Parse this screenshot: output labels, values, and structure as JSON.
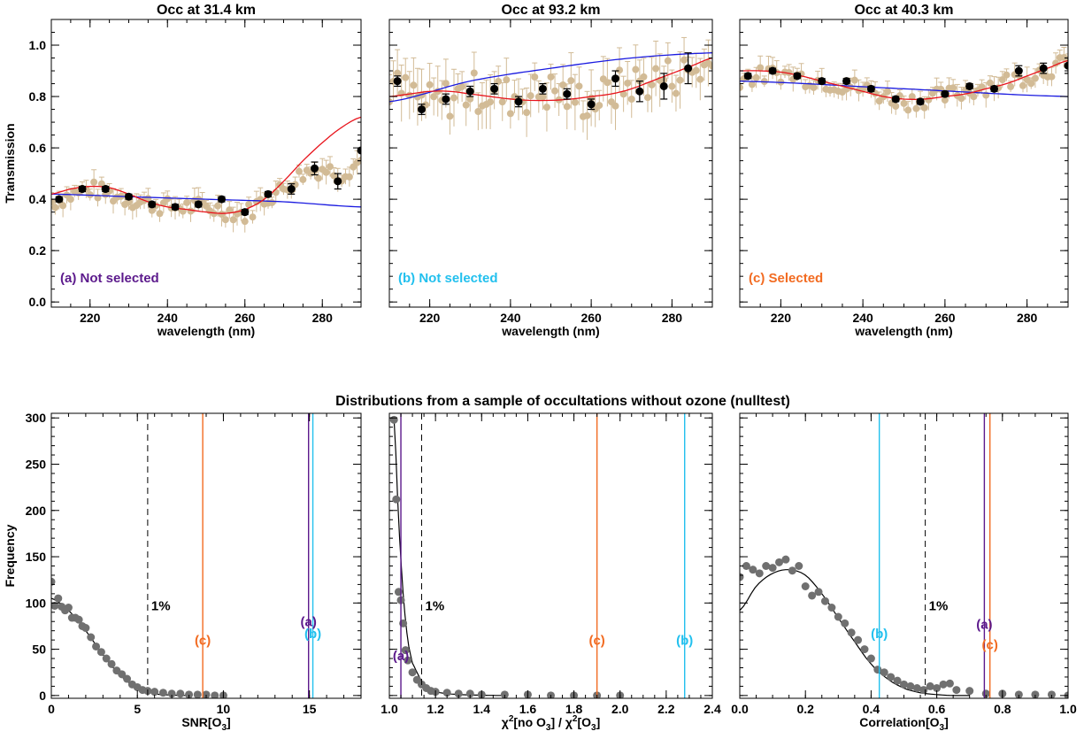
{
  "colors": {
    "a": "#5c1a8c",
    "b": "#22c0ee",
    "c": "#f26b21",
    "data_points": "#d2bb96",
    "binned": "#000000",
    "fit_red": "#e8141c",
    "fit_blue": "#1a1ae0",
    "hist": "#707070",
    "dashed": "#000000"
  },
  "suptitle": "Distributions from a sample of occultations without ozone (nulltest)",
  "chart_data": [
    {
      "type": "scatter",
      "title": "Occ  at  31.4 km",
      "xlabel": "wavelength (nm)",
      "ylabel": "Transmission",
      "xlim": [
        210,
        290
      ],
      "ylim": [
        -0.02,
        1.1
      ],
      "xticks": [
        "220",
        "240",
        "260",
        "280"
      ],
      "yticks": [
        "0.0",
        "0.2",
        "0.4",
        "0.6",
        "0.8",
        "1.0"
      ],
      "label": "(a) Not selected",
      "label_color_key": "a",
      "raw_baseline": [
        [
          210,
          0.39
        ],
        [
          220,
          0.44
        ],
        [
          230,
          0.4
        ],
        [
          240,
          0.37
        ],
        [
          250,
          0.37
        ],
        [
          260,
          0.34
        ],
        [
          265,
          0.4
        ],
        [
          270,
          0.44
        ],
        [
          275,
          0.5
        ],
        [
          280,
          0.52
        ],
        [
          285,
          0.5
        ],
        [
          290,
          0.55
        ]
      ],
      "raw_noise": 0.035,
      "binned": {
        "x": [
          212,
          218,
          224,
          230,
          236,
          242,
          248,
          254,
          260,
          266,
          272,
          278,
          284,
          290
        ],
        "y": [
          0.4,
          0.44,
          0.44,
          0.41,
          0.38,
          0.37,
          0.38,
          0.4,
          0.35,
          0.42,
          0.44,
          0.52,
          0.47,
          0.59
        ],
        "err": [
          0.01,
          0.01,
          0.01,
          0.01,
          0.01,
          0.01,
          0.01,
          0.01,
          0.01,
          0.01,
          0.02,
          0.025,
          0.03,
          0.04
        ]
      },
      "fit_red": {
        "x": [
          210,
          215,
          220,
          225,
          230,
          235,
          240,
          245,
          250,
          255,
          260,
          265,
          270,
          275,
          280,
          285,
          290
        ],
        "y": [
          0.42,
          0.44,
          0.45,
          0.445,
          0.42,
          0.39,
          0.37,
          0.36,
          0.35,
          0.345,
          0.36,
          0.4,
          0.47,
          0.55,
          0.62,
          0.68,
          0.72
        ]
      },
      "fit_blue": {
        "x": [
          210,
          230,
          250,
          270,
          290
        ],
        "y": [
          0.42,
          0.41,
          0.4,
          0.39,
          0.37
        ]
      }
    },
    {
      "type": "scatter",
      "title": "Occ  at  93.2 km",
      "xlabel": "wavelength (nm)",
      "ylabel": "",
      "xlim": [
        210,
        290
      ],
      "ylim": [
        -0.02,
        1.1
      ],
      "xticks": [
        "220",
        "240",
        "260",
        "280"
      ],
      "yticks": [],
      "label": "(b) Not selected",
      "label_color_key": "b",
      "raw_baseline": [
        [
          210,
          0.84
        ],
        [
          220,
          0.77
        ],
        [
          230,
          0.82
        ],
        [
          240,
          0.8
        ],
        [
          250,
          0.82
        ],
        [
          260,
          0.78
        ],
        [
          270,
          0.85
        ],
        [
          280,
          0.88
        ],
        [
          290,
          0.92
        ]
      ],
      "raw_noise": 0.08,
      "binned": {
        "x": [
          212,
          218,
          224,
          230,
          236,
          242,
          248,
          254,
          260,
          266,
          272,
          278,
          284
        ],
        "y": [
          0.86,
          0.75,
          0.79,
          0.82,
          0.83,
          0.78,
          0.83,
          0.81,
          0.77,
          0.87,
          0.82,
          0.84,
          0.91
        ],
        "err": [
          0.02,
          0.02,
          0.02,
          0.02,
          0.02,
          0.02,
          0.02,
          0.02,
          0.02,
          0.03,
          0.04,
          0.05,
          0.06
        ]
      },
      "fit_red": {
        "x": [
          210,
          215,
          220,
          225,
          230,
          235,
          240,
          245,
          250,
          255,
          260,
          265,
          270,
          275,
          280,
          285,
          290
        ],
        "y": [
          0.8,
          0.81,
          0.82,
          0.82,
          0.81,
          0.8,
          0.79,
          0.785,
          0.785,
          0.79,
          0.8,
          0.81,
          0.83,
          0.86,
          0.89,
          0.92,
          0.95
        ]
      },
      "fit_blue": {
        "x": [
          210,
          230,
          250,
          270,
          290
        ],
        "y": [
          0.78,
          0.86,
          0.91,
          0.95,
          0.97
        ]
      }
    },
    {
      "type": "scatter",
      "title": "Occ  at  40.3 km",
      "xlabel": "wavelength (nm)",
      "ylabel": "",
      "xlim": [
        210,
        290
      ],
      "ylim": [
        -0.02,
        1.1
      ],
      "xticks": [
        "220",
        "240",
        "260",
        "280"
      ],
      "yticks": [],
      "label": "(c) Selected",
      "label_color_key": "c",
      "raw_baseline": [
        [
          210,
          0.87
        ],
        [
          220,
          0.89
        ],
        [
          230,
          0.86
        ],
        [
          240,
          0.83
        ],
        [
          250,
          0.78
        ],
        [
          260,
          0.8
        ],
        [
          270,
          0.84
        ],
        [
          280,
          0.88
        ],
        [
          290,
          0.93
        ]
      ],
      "raw_noise": 0.035,
      "binned": {
        "x": [
          212,
          218,
          224,
          230,
          236,
          242,
          248,
          254,
          260,
          266,
          272,
          278,
          284,
          290
        ],
        "y": [
          0.88,
          0.9,
          0.88,
          0.86,
          0.86,
          0.83,
          0.79,
          0.78,
          0.81,
          0.84,
          0.83,
          0.9,
          0.91,
          0.92
        ],
        "err": [
          0.01,
          0.01,
          0.01,
          0.01,
          0.01,
          0.01,
          0.01,
          0.01,
          0.01,
          0.01,
          0.01,
          0.02,
          0.02,
          0.03
        ]
      },
      "fit_red": {
        "x": [
          210,
          215,
          220,
          225,
          230,
          235,
          240,
          245,
          250,
          255,
          260,
          265,
          270,
          275,
          280,
          285,
          290
        ],
        "y": [
          0.9,
          0.9,
          0.895,
          0.88,
          0.86,
          0.84,
          0.82,
          0.8,
          0.79,
          0.79,
          0.8,
          0.81,
          0.83,
          0.85,
          0.88,
          0.91,
          0.94
        ]
      },
      "fit_blue": {
        "x": [
          210,
          250,
          290
        ],
        "y": [
          0.86,
          0.83,
          0.8
        ]
      }
    },
    {
      "type": "scatter",
      "title": "",
      "xlabel": "SNR[O3]",
      "ylabel": "Frequency",
      "xlim": [
        0,
        18
      ],
      "ylim": [
        -3,
        305
      ],
      "xticks": [
        "0",
        "5",
        "10",
        "15"
      ],
      "xtick_vals": [
        0,
        5,
        10,
        15
      ],
      "yticks": [
        "0",
        "50",
        "100",
        "150",
        "200",
        "250",
        "300"
      ],
      "hist": {
        "x": [
          0,
          0.2,
          0.4,
          0.6,
          0.8,
          1.0,
          1.2,
          1.4,
          1.6,
          1.8,
          2.0,
          2.3,
          2.6,
          2.9,
          3.2,
          3.5,
          3.8,
          4.1,
          4.4,
          4.7,
          5.0,
          5.3,
          5.6,
          6,
          6.5,
          7,
          7.5,
          8,
          8.5,
          9,
          9.5,
          10
        ],
        "y": [
          123,
          97,
          105,
          96,
          92,
          95,
          84,
          84,
          82,
          75,
          73,
          63,
          53,
          47,
          40,
          34,
          27,
          23,
          18,
          12,
          9,
          6,
          5,
          4,
          3,
          2,
          2,
          1,
          1,
          1,
          0,
          0
        ]
      },
      "fit_curve": {
        "x": [
          0,
          1,
          2,
          3,
          4,
          5,
          6,
          7,
          8
        ],
        "y": [
          105,
          92,
          70,
          44,
          22,
          8,
          2,
          0.5,
          0
        ]
      },
      "pct_line": {
        "x": 5.6,
        "label": "1%"
      },
      "markers": [
        {
          "key": "c",
          "x": 8.8,
          "label": "(c)",
          "label_y": 55
        },
        {
          "key": "a",
          "x": 14.95,
          "label": "(a)",
          "label_y": 75
        },
        {
          "key": "b",
          "x": 15.2,
          "label": "(b)",
          "label_y": 62
        }
      ]
    },
    {
      "type": "scatter",
      "title": "",
      "xlabel": "χ2[no O3] / χ2[O3]",
      "ylabel": "",
      "xlim": [
        1.0,
        2.4
      ],
      "ylim": [
        -3,
        305
      ],
      "xticks": [
        "1.0",
        "1.2",
        "1.4",
        "1.6",
        "1.8",
        "2.0",
        "2.2",
        "2.4"
      ],
      "xtick_vals": [
        1.0,
        1.2,
        1.4,
        1.6,
        1.8,
        2.0,
        2.2,
        2.4
      ],
      "yticks": [],
      "hist": {
        "x": [
          1.02,
          1.03,
          1.04,
          1.05,
          1.06,
          1.07,
          1.08,
          1.1,
          1.12,
          1.14,
          1.16,
          1.18,
          1.2,
          1.25,
          1.3,
          1.35,
          1.4,
          1.5,
          1.6,
          1.7,
          1.8,
          1.9,
          2.0
        ],
        "y": [
          298,
          212,
          112,
          103,
          78,
          49,
          38,
          25,
          17,
          12,
          8,
          5,
          4,
          3,
          2,
          2,
          1,
          1,
          1,
          0,
          0,
          0,
          0
        ]
      },
      "fit_curve": {
        "x": [
          1.02,
          1.04,
          1.06,
          1.08,
          1.1,
          1.15,
          1.2,
          1.3,
          1.5
        ],
        "y": [
          300,
          190,
          110,
          60,
          35,
          12,
          4,
          1,
          0
        ]
      },
      "pct_line": {
        "x": 1.14,
        "label": "1%"
      },
      "markers": [
        {
          "key": "a",
          "x": 1.05,
          "label": "(a)",
          "label_y": 38
        },
        {
          "key": "c",
          "x": 1.9,
          "label": "(c)",
          "label_y": 55
        },
        {
          "key": "b",
          "x": 2.28,
          "label": "(b)",
          "label_y": 55
        }
      ]
    },
    {
      "type": "scatter",
      "title": "",
      "xlabel": "Correlation[O3]",
      "ylabel": "",
      "xlim": [
        0,
        1.0
      ],
      "ylim": [
        -3,
        305
      ],
      "xticks": [
        "0.0",
        "0.2",
        "0.4",
        "0.6",
        "0.8",
        "1.0"
      ],
      "xtick_vals": [
        0,
        0.2,
        0.4,
        0.6,
        0.8,
        1.0
      ],
      "yticks": [],
      "hist": {
        "x": [
          0.0,
          0.02,
          0.04,
          0.06,
          0.08,
          0.1,
          0.12,
          0.14,
          0.16,
          0.18,
          0.2,
          0.22,
          0.24,
          0.26,
          0.28,
          0.3,
          0.32,
          0.34,
          0.36,
          0.38,
          0.4,
          0.42,
          0.44,
          0.46,
          0.48,
          0.5,
          0.52,
          0.54,
          0.56,
          0.58,
          0.6,
          0.62,
          0.64,
          0.66,
          0.7,
          0.75,
          0.8,
          0.85,
          0.9,
          0.95,
          1.0
        ],
        "y": [
          128,
          140,
          136,
          132,
          140,
          138,
          144,
          147,
          135,
          140,
          118,
          108,
          112,
          102,
          95,
          85,
          78,
          68,
          60,
          50,
          40,
          28,
          25,
          20,
          16,
          12,
          10,
          8,
          6,
          10,
          8,
          12,
          13,
          6,
          5,
          2,
          2,
          1,
          1,
          1,
          0
        ]
      },
      "fit_curve": {
        "x": [
          0,
          0.05,
          0.1,
          0.15,
          0.2,
          0.25,
          0.3,
          0.35,
          0.4,
          0.45,
          0.5,
          0.55,
          0.6,
          0.65,
          0.7
        ],
        "y": [
          92,
          118,
          132,
          136,
          130,
          110,
          84,
          58,
          34,
          18,
          8,
          3,
          1,
          0,
          0
        ]
      },
      "pct_line": {
        "x": 0.565,
        "label": "1%"
      },
      "markers": [
        {
          "key": "b",
          "x": 0.425,
          "label": "(b)",
          "label_y": 62
        },
        {
          "key": "a",
          "x": 0.745,
          "label": "(a)",
          "label_y": 72
        },
        {
          "key": "c",
          "x": 0.762,
          "label": "(c)",
          "label_y": 50
        }
      ]
    }
  ]
}
